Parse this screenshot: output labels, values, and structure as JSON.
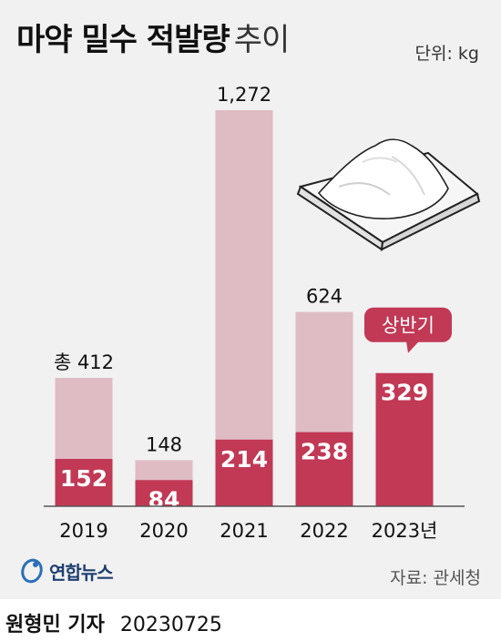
{
  "title": {
    "bold": "마약 밀수 적발량",
    "light": "추이"
  },
  "unit": "단위: kg",
  "source": "자료: 관세청",
  "logo": "연합뉴스",
  "reporter": "원형민 기자",
  "date": "20230725",
  "colors": {
    "background": "#f1f1f1",
    "total": "#dfbcc4",
    "primary": "#c13955",
    "baseline": "#555555"
  },
  "chart_data": {
    "type": "bar",
    "categories": [
      "2019",
      "2020",
      "2021",
      "2022",
      "2023년"
    ],
    "series": [
      {
        "values": [
          412,
          148,
          1272,
          624,
          329
        ]
      },
      {
        "values": [
          152,
          84,
          214,
          238,
          329
        ]
      }
    ],
    "total_labels": [
      "총 412",
      "148",
      "1,272",
      "624",
      null
    ],
    "value_labels": [
      "152",
      "84",
      "214",
      "238",
      "329"
    ],
    "callout": {
      "text": "상반기",
      "category": "2023년"
    },
    "ylim": [
      0,
      1272
    ],
    "xlabel": "",
    "ylabel": "",
    "grid": false
  }
}
